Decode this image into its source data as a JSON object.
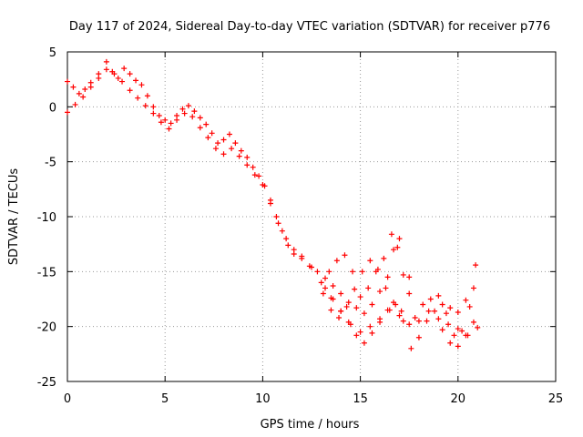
{
  "chart_data": {
    "type": "scatter",
    "title": "Day 117 of 2024, Sidereal Day-to-day VTEC variation (SDTVAR) for receiver p776",
    "xlabel": "GPS time / hours",
    "ylabel": "SDTVAR / TECUs",
    "xlim": [
      0,
      25
    ],
    "ylim": [
      -25,
      5
    ],
    "xticks": [
      "0",
      "5",
      "10",
      "15",
      "20",
      "25"
    ],
    "yticks": [
      "5",
      "0",
      "-5",
      "-10",
      "-15",
      "-20",
      "-25"
    ],
    "grid": true,
    "marker": "plus",
    "color": "#ff0000",
    "series": [
      {
        "points": [
          [
            0.0,
            2.3
          ],
          [
            0.3,
            1.8
          ],
          [
            0.6,
            1.2
          ],
          [
            0.9,
            1.6
          ],
          [
            1.2,
            2.2
          ],
          [
            1.6,
            3.0
          ],
          [
            2.0,
            4.1
          ],
          [
            2.3,
            3.2
          ],
          [
            2.6,
            2.6
          ],
          [
            2.9,
            3.5
          ],
          [
            3.2,
            3.0
          ],
          [
            3.5,
            2.4
          ],
          [
            3.8,
            2.0
          ],
          [
            4.1,
            1.0
          ],
          [
            4.4,
            0.0
          ],
          [
            4.7,
            -0.8
          ],
          [
            5.0,
            -1.2
          ],
          [
            5.3,
            -1.5
          ],
          [
            5.6,
            -0.8
          ],
          [
            5.9,
            -0.2
          ],
          [
            6.2,
            0.1
          ],
          [
            6.5,
            -0.4
          ],
          [
            6.8,
            -1.0
          ],
          [
            7.1,
            -1.6
          ],
          [
            7.4,
            -2.4
          ],
          [
            7.7,
            -3.3
          ],
          [
            8.0,
            -3.0
          ],
          [
            8.3,
            -2.5
          ],
          [
            8.6,
            -3.3
          ],
          [
            8.9,
            -4.0
          ],
          [
            9.2,
            -4.6
          ],
          [
            9.5,
            -5.5
          ],
          [
            9.8,
            -6.3
          ],
          [
            10.1,
            -7.2
          ],
          [
            10.4,
            -8.5
          ],
          [
            10.7,
            -10.0
          ],
          [
            11.0,
            -11.3
          ],
          [
            11.3,
            -12.6
          ],
          [
            11.6,
            -13.4
          ],
          [
            12.0,
            -13.8
          ],
          [
            12.4,
            -14.5
          ],
          [
            12.8,
            -15.0
          ],
          [
            13.2,
            -15.6
          ],
          [
            13.6,
            -16.3
          ],
          [
            14.0,
            -17.0
          ],
          [
            14.4,
            -17.8
          ],
          [
            14.8,
            -18.3
          ],
          [
            15.2,
            -18.8
          ],
          [
            15.6,
            -18.0
          ],
          [
            16.0,
            -16.8
          ],
          [
            16.4,
            -15.5
          ],
          [
            16.7,
            -13.0
          ],
          [
            17.0,
            -12.0
          ]
        ]
      },
      {
        "points": [
          [
            0.0,
            -0.5
          ],
          [
            0.4,
            0.2
          ],
          [
            0.8,
            0.9
          ],
          [
            1.2,
            1.8
          ],
          [
            1.6,
            2.6
          ],
          [
            2.0,
            3.4
          ],
          [
            2.4,
            3.0
          ],
          [
            2.8,
            2.3
          ],
          [
            3.2,
            1.5
          ],
          [
            3.6,
            0.8
          ],
          [
            4.0,
            0.1
          ],
          [
            4.4,
            -0.6
          ],
          [
            4.8,
            -1.4
          ],
          [
            5.2,
            -2.0
          ],
          [
            5.6,
            -1.2
          ],
          [
            6.0,
            -0.6
          ],
          [
            6.4,
            -0.9
          ],
          [
            6.8,
            -1.9
          ],
          [
            7.2,
            -2.8
          ],
          [
            7.6,
            -3.8
          ],
          [
            8.0,
            -4.3
          ],
          [
            8.4,
            -3.8
          ],
          [
            8.8,
            -4.5
          ],
          [
            9.2,
            -5.3
          ],
          [
            9.6,
            -6.2
          ],
          [
            10.0,
            -7.1
          ],
          [
            10.4,
            -8.8
          ],
          [
            10.8,
            -10.6
          ],
          [
            11.2,
            -12.0
          ],
          [
            11.6,
            -13.0
          ],
          [
            12.0,
            -13.6
          ],
          [
            12.5,
            -14.6
          ],
          [
            13.0,
            -16.0
          ],
          [
            13.5,
            -17.4
          ],
          [
            14.0,
            -18.6
          ],
          [
            14.5,
            -19.8
          ],
          [
            15.0,
            -20.5
          ],
          [
            15.5,
            -20.0
          ],
          [
            16.0,
            -19.3
          ],
          [
            16.5,
            -18.5
          ],
          [
            17.0,
            -19.0
          ],
          [
            17.5,
            -17.0
          ],
          [
            18.0,
            -19.5
          ],
          [
            18.5,
            -18.6
          ],
          [
            19.0,
            -19.3
          ],
          [
            19.5,
            -19.8
          ],
          [
            20.0,
            -20.2
          ],
          [
            20.5,
            -20.8
          ],
          [
            21.0,
            -20.1
          ]
        ]
      },
      {
        "points": [
          [
            13.2,
            -16.5
          ],
          [
            13.6,
            -17.5
          ],
          [
            14.0,
            -18.6
          ],
          [
            14.4,
            -19.6
          ],
          [
            14.8,
            -20.8
          ],
          [
            15.2,
            -21.5
          ],
          [
            15.6,
            -20.6
          ],
          [
            16.0,
            -19.6
          ],
          [
            16.4,
            -18.5
          ],
          [
            16.8,
            -18.0
          ],
          [
            17.2,
            -19.5
          ],
          [
            17.6,
            -22.0
          ],
          [
            18.0,
            -21.0
          ],
          [
            18.4,
            -19.5
          ],
          [
            18.8,
            -18.6
          ],
          [
            19.2,
            -18.0
          ],
          [
            19.6,
            -18.3
          ],
          [
            20.0,
            -18.7
          ],
          [
            20.4,
            -17.6
          ],
          [
            20.8,
            -16.5
          ]
        ]
      },
      {
        "points": [
          [
            13.4,
            -15.0
          ],
          [
            13.8,
            -14.0
          ],
          [
            14.2,
            -13.5
          ],
          [
            14.6,
            -15.0
          ],
          [
            15.0,
            -17.3
          ],
          [
            15.4,
            -16.5
          ],
          [
            15.8,
            -15.0
          ],
          [
            16.2,
            -13.8
          ],
          [
            16.6,
            -11.6
          ],
          [
            16.9,
            -12.8
          ],
          [
            17.2,
            -15.3
          ],
          [
            17.5,
            -15.5
          ]
        ]
      },
      {
        "points": [
          [
            13.1,
            -17.0
          ],
          [
            13.5,
            -18.5
          ],
          [
            13.9,
            -19.2
          ],
          [
            14.3,
            -18.2
          ],
          [
            14.7,
            -16.6
          ],
          [
            15.1,
            -15.0
          ],
          [
            15.5,
            -14.0
          ],
          [
            15.9,
            -14.8
          ],
          [
            16.3,
            -16.5
          ],
          [
            16.7,
            -17.8
          ],
          [
            17.1,
            -18.6
          ],
          [
            17.5,
            -19.8
          ]
        ]
      },
      {
        "points": [
          [
            17.8,
            -19.2
          ],
          [
            18.2,
            -18.0
          ],
          [
            18.6,
            -17.5
          ],
          [
            19.0,
            -17.2
          ],
          [
            19.4,
            -18.8
          ],
          [
            19.8,
            -20.8
          ],
          [
            20.2,
            -20.4
          ],
          [
            20.6,
            -18.2
          ],
          [
            20.9,
            -14.4
          ],
          [
            19.2,
            -20.3
          ],
          [
            19.6,
            -21.5
          ],
          [
            20.0,
            -21.8
          ],
          [
            20.4,
            -20.8
          ],
          [
            20.8,
            -19.6
          ]
        ]
      }
    ]
  }
}
